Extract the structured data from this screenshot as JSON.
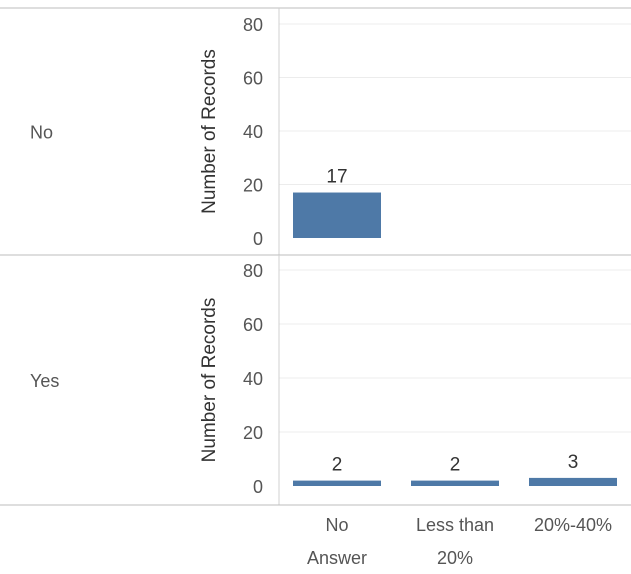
{
  "chart_data": {
    "type": "bar",
    "ylabel": "Number of Records",
    "ylim": [
      0,
      80
    ],
    "yticks": [
      0,
      20,
      40,
      60,
      80
    ],
    "grid": true,
    "categories": [
      {
        "lines": [
          "No",
          "Answer"
        ]
      },
      {
        "lines": [
          "Less than",
          "20%"
        ]
      },
      {
        "lines": [
          "20%-40%"
        ]
      }
    ],
    "panels": [
      {
        "row": "No",
        "values": [
          17,
          null,
          null
        ]
      },
      {
        "row": "Yes",
        "values": [
          2,
          2,
          3
        ]
      }
    ],
    "bar_color": "#4e79a7"
  }
}
